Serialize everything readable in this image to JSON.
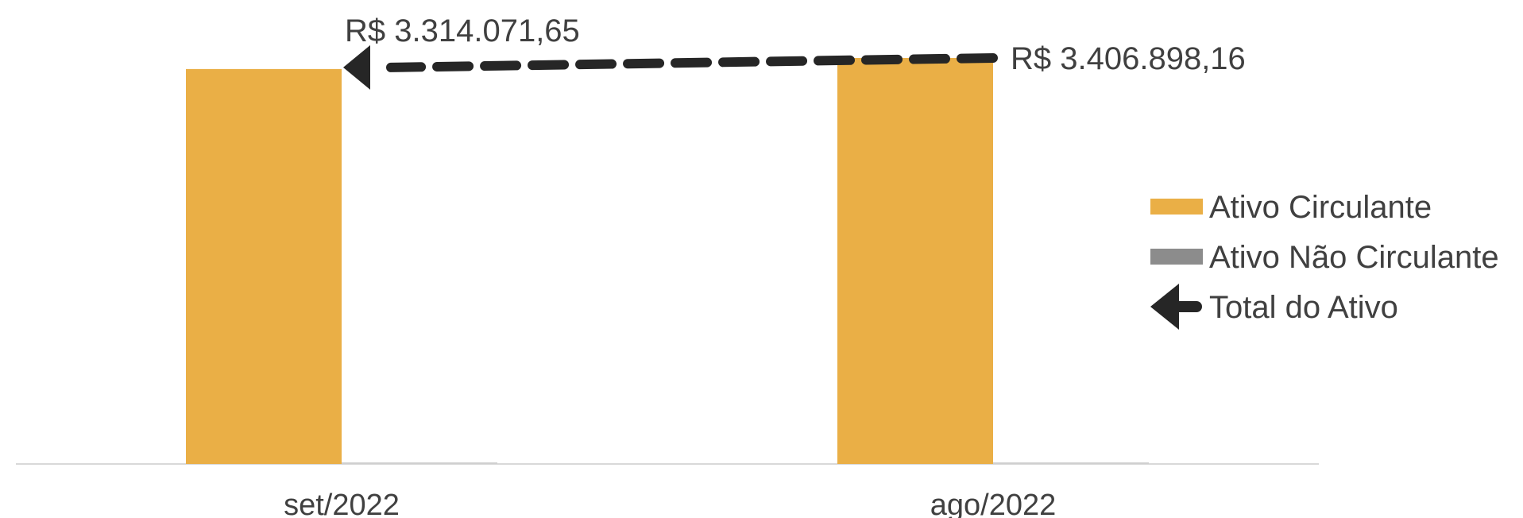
{
  "chart_data": {
    "type": "bar",
    "categories": [
      "set/2022",
      "ago/2022"
    ],
    "series": [
      {
        "name": "Ativo Circulante",
        "values": [
          3314071.65,
          3406898.16
        ],
        "color": "#EAAF46",
        "kind": "bar"
      },
      {
        "name": "Ativo Não Circulante",
        "values": [
          0,
          0
        ],
        "color": "#8C8C8C",
        "kind": "bar"
      },
      {
        "name": "Total do Ativo",
        "values": [
          3314071.65,
          3406898.16
        ],
        "color": "#262626",
        "kind": "line-dashed-arrow"
      }
    ],
    "data_labels": [
      "R$ 3.314.071,65",
      "R$ 3.406.898,16"
    ],
    "ylim": [
      0,
      3400000
    ],
    "legend": "right",
    "grid": false
  }
}
